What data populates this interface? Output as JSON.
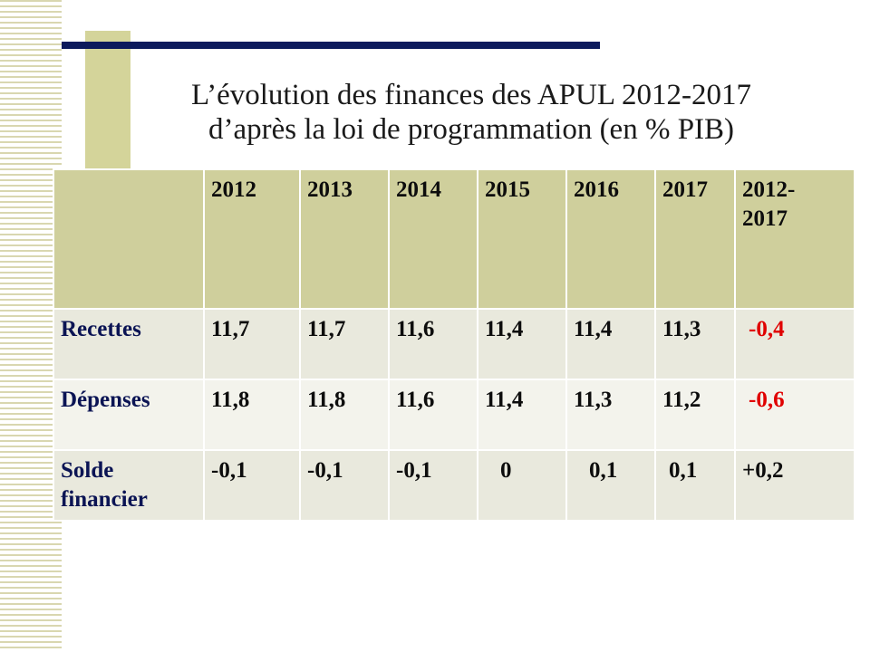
{
  "title": {
    "line1": "L’évolution des finances des APUL 2012-2017",
    "line2": "d’après la loi de programmation (en % PIB)"
  },
  "colors": {
    "title_bar": "#0c1a5c",
    "header_bg": "#cfcf9c",
    "row_label": "#0b1454",
    "negative_total": "#e00000"
  },
  "table": {
    "headers": [
      "",
      "2012",
      "2013",
      "2014",
      "2015",
      "2016",
      "2017",
      "2012-\n2017"
    ],
    "rows": [
      {
        "label": "Recettes",
        "values": [
          "11,7",
          "11,7",
          "11,6",
          "11,4",
          "11,4",
          "11,3"
        ],
        "total": "-0,4"
      },
      {
        "label": "Dépenses",
        "values": [
          "11,8",
          "11,8",
          "11,6",
          "11,4",
          "11,3",
          "11,2"
        ],
        "total": "-0,6"
      },
      {
        "label": "Solde financier",
        "values": [
          "-0,1",
          "-0,1",
          "-0,1",
          "0",
          "0,1",
          "0,1"
        ],
        "total": "+0,2"
      }
    ]
  }
}
